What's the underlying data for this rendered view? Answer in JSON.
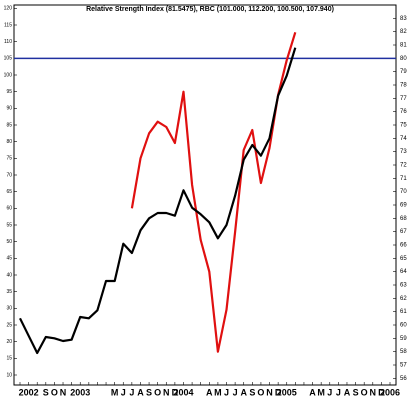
{
  "chart_data": {
    "type": "line",
    "title": "Relative Strength Index (81.5475), RBC (101.000, 112.200, 100.500, 107.940)",
    "categories": [
      null,
      "2002",
      null,
      "S",
      "O",
      "N",
      null,
      "2003",
      null,
      null,
      null,
      "M",
      "J",
      "J",
      "A",
      "S",
      "O",
      "N",
      "D",
      "2004",
      null,
      null,
      "A",
      "M",
      "J",
      "J",
      "A",
      "S",
      "O",
      "N",
      "D",
      "2005",
      null,
      null,
      "A",
      "M",
      "J",
      "J",
      "A",
      "S",
      "O",
      "N",
      "D",
      "2006"
    ],
    "series": [
      {
        "name": "Relative Strength Index",
        "color": "#e01010",
        "axis": "y",
        "values": [
          null,
          null,
          null,
          null,
          null,
          null,
          null,
          null,
          null,
          null,
          null,
          null,
          null,
          60,
          75,
          82.5,
          86,
          84.4,
          79.6,
          95,
          67,
          50.5,
          41,
          17,
          29.6,
          52.9,
          77.5,
          83.5,
          67.6,
          78.1,
          94,
          104.4,
          112.8,
          null,
          null,
          null,
          null,
          null,
          null,
          null,
          null,
          null,
          null,
          null
        ]
      },
      {
        "name": "RBC",
        "color": "#000000",
        "axis": "y2",
        "values": [
          60.5,
          59.2,
          57.9,
          59.1,
          59,
          58.8,
          58.9,
          60.6,
          60.5,
          61.1,
          63.3,
          63.3,
          66.1,
          65.4,
          67.1,
          68,
          68.4,
          68.4,
          68.2,
          70.1,
          68.8,
          68.3,
          67.7,
          66.5,
          67.5,
          69.7,
          72.4,
          73.5,
          72.7,
          74,
          77.2,
          78.7,
          80.8,
          null,
          null,
          null,
          null,
          null,
          null,
          null,
          null,
          null,
          null,
          null
        ]
      }
    ],
    "ylim": [
      7,
      121
    ],
    "yticks": [
      10,
      15,
      20,
      25,
      30,
      35,
      40,
      45,
      50,
      55,
      60,
      65,
      70,
      75,
      80,
      85,
      90,
      95,
      100,
      105,
      110,
      115,
      120
    ],
    "y2lim": [
      55.5,
      84
    ],
    "y2ticks": [
      56,
      57,
      58,
      59,
      60,
      61,
      62,
      63,
      64,
      65,
      66,
      67,
      68,
      69,
      70,
      71,
      72,
      73,
      74,
      75,
      76,
      77,
      78,
      79,
      80,
      81,
      82,
      83
    ],
    "reference_line": {
      "axis": "y2",
      "value": 80,
      "color": "#2030a0"
    }
  }
}
